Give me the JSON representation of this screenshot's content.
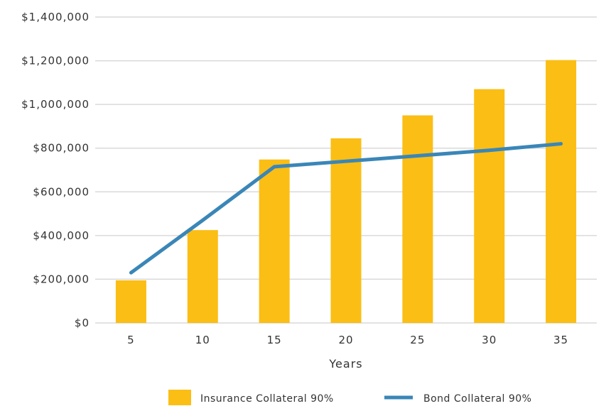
{
  "chart_data": {
    "type": "bar",
    "categories": [
      "5",
      "10",
      "15",
      "20",
      "25",
      "30",
      "35"
    ],
    "series": [
      {
        "name": "Insurance Collateral 90%",
        "kind": "bar",
        "color": "#FBBE14",
        "values": [
          195000,
          425000,
          748000,
          845000,
          950000,
          1070000,
          1203000
        ]
      },
      {
        "name": "Bond Collateral 90%",
        "kind": "line",
        "color": "#3A86B8",
        "values": [
          230000,
          470000,
          715000,
          740000,
          765000,
          790000,
          820000
        ]
      }
    ],
    "title": "",
    "xlabel": "Years",
    "ylabel": "",
    "ylim": [
      0,
      1400000
    ],
    "yticks": [
      0,
      200000,
      400000,
      600000,
      800000,
      1000000,
      1200000,
      1400000
    ],
    "ytick_labels": [
      "$0",
      "$200,000",
      "$400,000",
      "$600,000",
      "$800,000",
      "$1,000,000",
      "$1,200,000",
      "$1,400,000"
    ],
    "grid": true,
    "grid_color": "#D9D9D9",
    "legend_position": "bottom"
  }
}
